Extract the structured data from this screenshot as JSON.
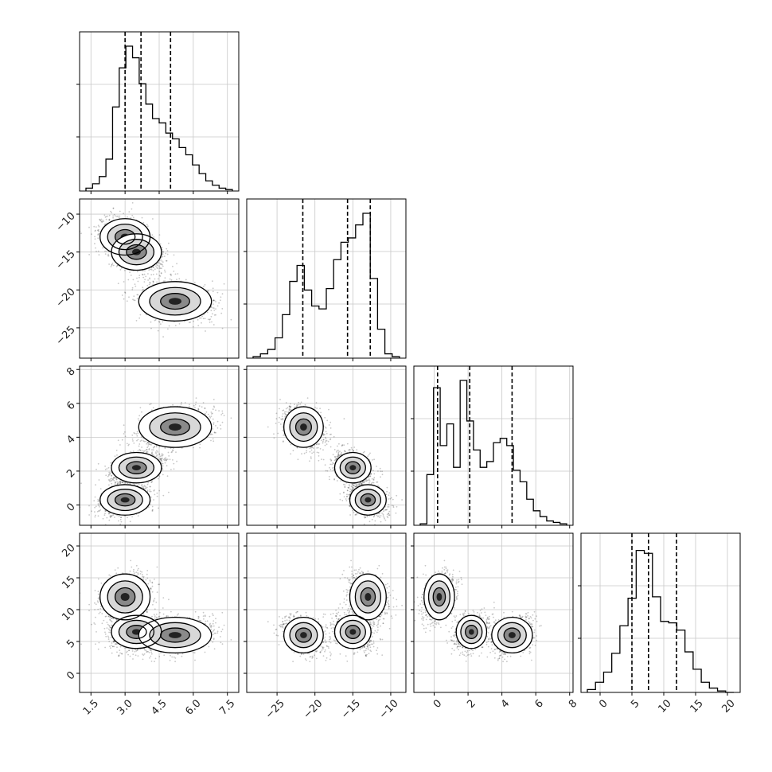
{
  "chart_data": {
    "type": "corner",
    "grid": true,
    "num_params": 4,
    "params": [
      {
        "index": 0,
        "range": [
          1.0,
          8.0
        ],
        "ticks": [
          1.5,
          3.0,
          4.5,
          6.0,
          7.5
        ],
        "tick_labels": [
          "1.5",
          "3.0",
          "4.5",
          "6.0",
          "7.5"
        ],
        "quantiles": [
          3.0,
          3.7,
          5.0
        ],
        "hist": [
          0.02,
          0.05,
          0.1,
          0.22,
          0.58,
          0.85,
          1.0,
          0.92,
          0.74,
          0.6,
          0.5,
          0.47,
          0.4,
          0.36,
          0.3,
          0.25,
          0.18,
          0.12,
          0.07,
          0.04,
          0.02,
          0.01
        ]
      },
      {
        "index": 1,
        "range": [
          -29.0,
          -8.0
        ],
        "ticks": [
          -25,
          -20,
          -15,
          -10
        ],
        "tick_labels": [
          "−25",
          "−20",
          "−15",
          "−10"
        ],
        "quantiles": [
          -21.6,
          -15.7,
          -12.7
        ],
        "hist": [
          0.01,
          0.03,
          0.06,
          0.14,
          0.3,
          0.53,
          0.64,
          0.47,
          0.36,
          0.34,
          0.48,
          0.68,
          0.8,
          0.83,
          0.92,
          1.0,
          0.55,
          0.2,
          0.03,
          0.01
        ]
      },
      {
        "index": 2,
        "range": [
          -1.2,
          8.2
        ],
        "ticks": [
          0,
          2,
          4,
          6,
          8
        ],
        "tick_labels": [
          "0",
          "2",
          "4",
          "6",
          "8"
        ],
        "quantiles": [
          0.2,
          2.1,
          4.6
        ],
        "hist": [
          0.01,
          0.35,
          0.95,
          0.55,
          0.7,
          0.4,
          1.0,
          0.72,
          0.52,
          0.4,
          0.44,
          0.57,
          0.6,
          0.55,
          0.38,
          0.3,
          0.18,
          0.1,
          0.06,
          0.03,
          0.02,
          0.01
        ]
      },
      {
        "index": 3,
        "range": [
          -3.0,
          22.0
        ],
        "ticks": [
          0,
          5,
          10,
          15,
          20
        ],
        "tick_labels": [
          "0",
          "5",
          "10",
          "15",
          "20"
        ],
        "quantiles": [
          5.0,
          7.6,
          12.0
        ],
        "hist": [
          0.02,
          0.07,
          0.14,
          0.27,
          0.46,
          0.65,
          0.98,
          0.96,
          0.66,
          0.49,
          0.48,
          0.43,
          0.28,
          0.16,
          0.07,
          0.03,
          0.01,
          0.0
        ]
      }
    ],
    "clusters": [
      {
        "means": [
          3.0,
          -13.0,
          0.3,
          12.0
        ],
        "sd": [
          0.55,
          1.2,
          0.45,
          1.8
        ],
        "weight": 0.33
      },
      {
        "means": [
          3.5,
          -15.0,
          2.2,
          6.5
        ],
        "sd": [
          0.55,
          1.2,
          0.45,
          1.3
        ],
        "weight": 0.34
      },
      {
        "means": [
          5.2,
          -21.5,
          4.6,
          6.0
        ],
        "sd": [
          0.8,
          1.3,
          0.6,
          1.4
        ],
        "weight": 0.33
      }
    ]
  }
}
